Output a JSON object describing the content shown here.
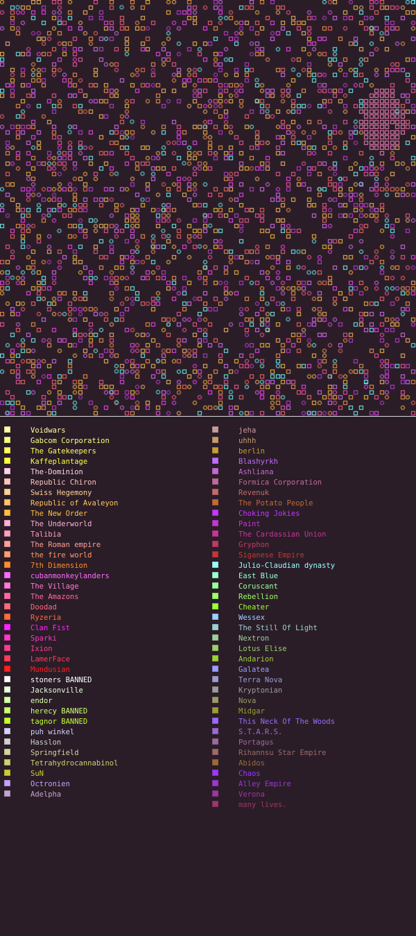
{
  "colors": {
    "background": "#2a1d27",
    "divider": "#d9d9d9"
  },
  "map": {
    "empire_colors": [
      "#ff45ff",
      "#c43fdc",
      "#ff5a9c",
      "#ff9a4a",
      "#ffbf6a",
      "#70ffff",
      "#ffc13d",
      "#ff6a6a",
      "#e070ff"
    ],
    "highlight_color": "#ff86c2",
    "wormhole_symbol_color": "#70ffff"
  },
  "legend": {
    "left": [
      {
        "name": "Voidwars",
        "color": "#ffffa8"
      },
      {
        "name": "Gabcom Corporation",
        "color": "#ffff80"
      },
      {
        "name": "The Gatekeepers",
        "color": "#ffff60"
      },
      {
        "name": "Kaffeplantage",
        "color": "#ffff3e"
      },
      {
        "name": "The-Dominion",
        "color": "#ffd2ec"
      },
      {
        "name": "Republic Chiron",
        "color": "#ffc6bf"
      },
      {
        "name": "Swiss Hegemony",
        "color": "#ffd29a"
      },
      {
        "name": "Republic of Avaleyon",
        "color": "#ffc564"
      },
      {
        "name": "The New Order",
        "color": "#ffbf3d"
      },
      {
        "name": "The Underworld",
        "color": "#ffb0d8"
      },
      {
        "name": "Talibia",
        "color": "#ff9fc2"
      },
      {
        "name": "The Roman empire",
        "color": "#ff9f98"
      },
      {
        "name": "the fire world",
        "color": "#ff9c70"
      },
      {
        "name": "7th Dimension",
        "color": "#ff8e32"
      },
      {
        "name": "cubanmonkeylanders",
        "color": "#ff6cff"
      },
      {
        "name": "The Village",
        "color": "#ff7ad4"
      },
      {
        "name": "The Amazons",
        "color": "#ff6ba2"
      },
      {
        "name": "Doodad",
        "color": "#ff6a7c"
      },
      {
        "name": "Ryzeria",
        "color": "#ff6a3e"
      },
      {
        "name": "Clan Fist",
        "color": "#ff25ff"
      },
      {
        "name": "Sparki",
        "color": "#ff38c8"
      },
      {
        "name": "Ixion",
        "color": "#ff3c8c"
      },
      {
        "name": "LamerFace",
        "color": "#ff3c5e"
      },
      {
        "name": "Mundusian",
        "color": "#ff2020"
      },
      {
        "name": "stoners BANNED",
        "color": "#fdfdfd"
      },
      {
        "name": "Jacksonville",
        "color": "#e8ffe0"
      },
      {
        "name": "endor",
        "color": "#d8ffa8"
      },
      {
        "name": "herecy BANNED",
        "color": "#ccff6e"
      },
      {
        "name": "tagnor BANNED",
        "color": "#c2ff30"
      },
      {
        "name": "puh winkel",
        "color": "#d4d4ff"
      },
      {
        "name": "Hasslon",
        "color": "#d0d0d0"
      },
      {
        "name": "Springfield",
        "color": "#d4d4a0"
      },
      {
        "name": "Tetrahydrocannabinol",
        "color": "#d0d070"
      },
      {
        "name": "SuN",
        "color": "#cccc3a"
      },
      {
        "name": "Octronien",
        "color": "#c2a4ff"
      },
      {
        "name": "Adelpha",
        "color": "#c4a4c8"
      }
    ],
    "right": [
      {
        "name": "jeha",
        "color": "#c89c9c"
      },
      {
        "name": "uhhh",
        "color": "#c89c6c"
      },
      {
        "name": "berlin",
        "color": "#c89c38"
      },
      {
        "name": "Blashyrkh",
        "color": "#c46aff"
      },
      {
        "name": "Ashliana",
        "color": "#c26ad0"
      },
      {
        "name": "Formica Corporation",
        "color": "#c26a9c"
      },
      {
        "name": "Revenuk",
        "color": "#c26a6a"
      },
      {
        "name": "The Potato People",
        "color": "#c26a38"
      },
      {
        "name": "Choking Jokies",
        "color": "#c238ff"
      },
      {
        "name": "Paint",
        "color": "#c238d0"
      },
      {
        "name": "The Cardassian Union",
        "color": "#c23898"
      },
      {
        "name": "Gryphon",
        "color": "#c23868"
      },
      {
        "name": "Siganese Empire",
        "color": "#c23838"
      },
      {
        "name": "Julio-Claudian dynasty",
        "color": "#9cffff"
      },
      {
        "name": "East Blue",
        "color": "#9cffd4"
      },
      {
        "name": "Coruscant",
        "color": "#9cffa0"
      },
      {
        "name": "Rebellion",
        "color": "#9cff6c"
      },
      {
        "name": "Cheater",
        "color": "#9cff38"
      },
      {
        "name": "Wessex",
        "color": "#9cd0ff"
      },
      {
        "name": "The Still Of Light",
        "color": "#9cd0d0"
      },
      {
        "name": "Nextron",
        "color": "#9cd09c"
      },
      {
        "name": "Lotus Elise",
        "color": "#9cd06a"
      },
      {
        "name": "Andarion",
        "color": "#9cd038"
      },
      {
        "name": "Galatea",
        "color": "#9c9cff"
      },
      {
        "name": "Terra Nova",
        "color": "#9c9cd0"
      },
      {
        "name": "Kryptonian",
        "color": "#9c9c9c"
      },
      {
        "name": "Nova",
        "color": "#9c9c6a"
      },
      {
        "name": "Midgar",
        "color": "#9c9c38"
      },
      {
        "name": "This Neck Of The Woods",
        "color": "#9c6aff"
      },
      {
        "name": "S.T.A.R.S.",
        "color": "#9c6ad0"
      },
      {
        "name": "Portagus",
        "color": "#9c6a9c"
      },
      {
        "name": "Rihannsu Star Empire",
        "color": "#9c6a6a"
      },
      {
        "name": "Abidos",
        "color": "#9c6a38"
      },
      {
        "name": "Chaos",
        "color": "#9c38ff"
      },
      {
        "name": "Alley Empire",
        "color": "#9c38d0"
      },
      {
        "name": "Verona",
        "color": "#9c389c"
      },
      {
        "name": "many lives.",
        "color": "#9c386a"
      }
    ]
  }
}
